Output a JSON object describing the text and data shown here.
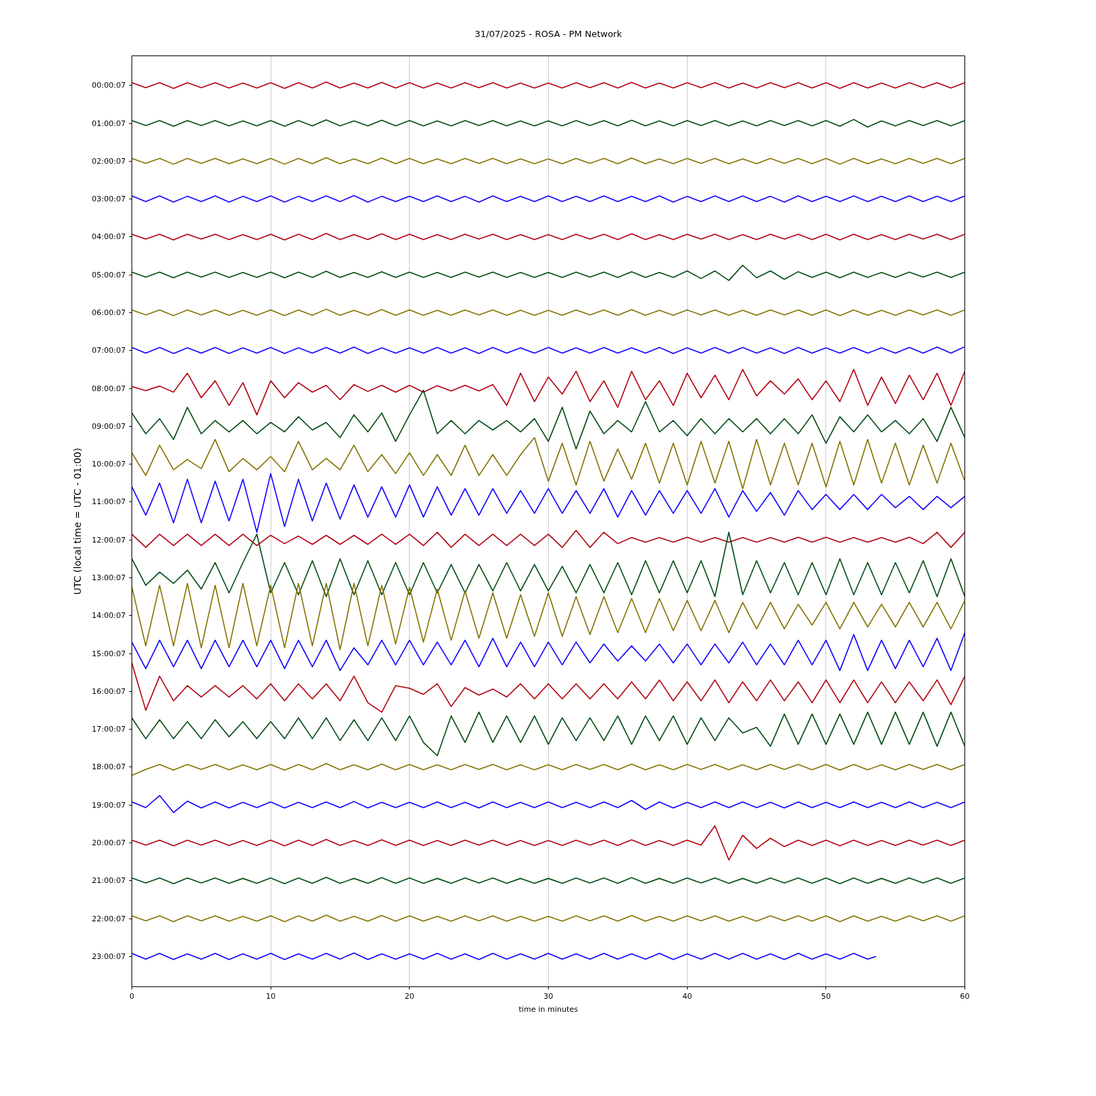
{
  "chart_data": {
    "type": "line",
    "title": "31/07/2025 - ROSA - PM Network",
    "xlabel": "time in minutes",
    "ylabel": "UTC (local time = UTC - 01:00)",
    "x": [
      0,
      1,
      2,
      3,
      4,
      5,
      6,
      7,
      8,
      9,
      10,
      11,
      12,
      13,
      14,
      15,
      16,
      17,
      18,
      19,
      20,
      21,
      22,
      23,
      24,
      25,
      26,
      27,
      28,
      29,
      30,
      31,
      32,
      33,
      34,
      35,
      36,
      37,
      38,
      39,
      40,
      41,
      42,
      43,
      44,
      45,
      46,
      47,
      48,
      49,
      50,
      51,
      52,
      53,
      54,
      55,
      56,
      57,
      58,
      59,
      60
    ],
    "xlim": [
      0,
      60
    ],
    "xticks": [
      0,
      10,
      20,
      30,
      40,
      50,
      60
    ],
    "ylim": [
      23.8,
      -0.78
    ],
    "yticks": [
      {
        "value": 0.00194,
        "label": "00:00:07"
      },
      {
        "value": 1.00194,
        "label": "01:00:07"
      },
      {
        "value": 2.00194,
        "label": "02:00:07"
      },
      {
        "value": 3.00194,
        "label": "03:00:07"
      },
      {
        "value": 4.00194,
        "label": "04:00:07"
      },
      {
        "value": 5.00194,
        "label": "05:00:07"
      },
      {
        "value": 6.00194,
        "label": "06:00:07"
      },
      {
        "value": 7.00194,
        "label": "07:00:07"
      },
      {
        "value": 8.00194,
        "label": "08:00:07"
      },
      {
        "value": 9.00194,
        "label": "09:00:07"
      },
      {
        "value": 10.00194,
        "label": "10:00:07"
      },
      {
        "value": 11.00194,
        "label": "11:00:07"
      },
      {
        "value": 12.00194,
        "label": "12:00:07"
      },
      {
        "value": 13.00194,
        "label": "13:00:07"
      },
      {
        "value": 14.00194,
        "label": "14:00:07"
      },
      {
        "value": 15.00194,
        "label": "15:00:07"
      },
      {
        "value": 16.00194,
        "label": "16:00:07"
      },
      {
        "value": 17.00194,
        "label": "17:00:07"
      },
      {
        "value": 18.00194,
        "label": "18:00:07"
      },
      {
        "value": 19.00194,
        "label": "19:00:07"
      },
      {
        "value": 20.00194,
        "label": "20:00:07"
      },
      {
        "value": 21.00194,
        "label": "21:00:07"
      },
      {
        "value": 22.00194,
        "label": "22:00:07"
      },
      {
        "value": 23.00194,
        "label": "23:00:07"
      }
    ],
    "grid": "x",
    "series": [
      {
        "color": "#b2000f",
        "values": [
          -0.07,
          0.06,
          -0.07,
          0.08,
          -0.07,
          0.06,
          -0.07,
          0.07,
          -0.06,
          0.07,
          -0.07,
          0.08,
          -0.07,
          0.07,
          -0.09,
          0.07,
          -0.06,
          0.07,
          -0.08,
          0.07,
          -0.07,
          0.07,
          -0.06,
          0.07,
          -0.07,
          0.06,
          -0.07,
          0.07,
          -0.06,
          0.07,
          -0.06,
          0.07,
          -0.07,
          0.06,
          -0.07,
          0.07,
          -0.08,
          0.07,
          -0.06,
          0.07,
          -0.07,
          0.06,
          -0.07,
          0.07,
          -0.06,
          0.07,
          -0.07,
          0.06,
          -0.07,
          0.07,
          -0.07,
          0.08,
          -0.07,
          0.07,
          -0.06,
          0.07,
          -0.07,
          0.06,
          -0.07,
          0.07,
          -0.07
        ]
      },
      {
        "color": "#004c12",
        "values": [
          0.93,
          1.06,
          0.93,
          1.08,
          0.93,
          1.06,
          0.93,
          1.07,
          0.94,
          1.07,
          0.93,
          1.08,
          0.93,
          1.07,
          0.91,
          1.07,
          0.94,
          1.07,
          0.92,
          1.07,
          0.93,
          1.07,
          0.94,
          1.07,
          0.93,
          1.06,
          0.93,
          1.07,
          0.94,
          1.07,
          0.94,
          1.07,
          0.93,
          1.06,
          0.93,
          1.07,
          0.92,
          1.07,
          0.94,
          1.07,
          0.93,
          1.06,
          0.93,
          1.07,
          0.94,
          1.07,
          0.93,
          1.06,
          0.93,
          1.07,
          0.93,
          1.08,
          0.9,
          1.1,
          0.94,
          1.07,
          0.93,
          1.06,
          0.93,
          1.07,
          0.93
        ]
      },
      {
        "color": "#847200",
        "values": [
          1.93,
          2.06,
          1.93,
          2.08,
          1.93,
          2.06,
          1.93,
          2.07,
          1.94,
          2.07,
          1.93,
          2.08,
          1.93,
          2.07,
          1.91,
          2.07,
          1.94,
          2.07,
          1.92,
          2.07,
          1.93,
          2.07,
          1.94,
          2.07,
          1.93,
          2.06,
          1.93,
          2.07,
          1.94,
          2.07,
          1.94,
          2.07,
          1.93,
          2.06,
          1.93,
          2.07,
          1.92,
          2.07,
          1.94,
          2.07,
          1.93,
          2.06,
          1.93,
          2.07,
          1.94,
          2.07,
          1.93,
          2.06,
          1.93,
          2.07,
          1.93,
          2.08,
          1.93,
          2.07,
          1.94,
          2.07,
          1.93,
          2.06,
          1.93,
          2.07,
          1.93
        ]
      },
      {
        "color": "#0e01ff",
        "values": [
          2.92,
          3.07,
          2.92,
          3.08,
          2.93,
          3.07,
          2.92,
          3.08,
          2.93,
          3.07,
          2.92,
          3.08,
          2.93,
          3.07,
          2.92,
          3.07,
          2.91,
          3.08,
          2.93,
          3.07,
          2.93,
          3.07,
          2.92,
          3.07,
          2.93,
          3.08,
          2.92,
          3.07,
          2.93,
          3.07,
          2.92,
          3.07,
          2.93,
          3.07,
          2.92,
          3.07,
          2.93,
          3.07,
          2.92,
          3.08,
          2.93,
          3.07,
          2.92,
          3.07,
          2.92,
          3.07,
          2.93,
          3.08,
          2.92,
          3.07,
          2.93,
          3.07,
          2.92,
          3.07,
          2.93,
          3.07,
          2.92,
          3.07,
          2.93,
          3.07,
          2.92
        ]
      },
      {
        "color": "#b2000f",
        "values": [
          3.93,
          4.06,
          3.93,
          4.08,
          3.93,
          4.06,
          3.93,
          4.07,
          3.94,
          4.07,
          3.93,
          4.08,
          3.93,
          4.07,
          3.91,
          4.07,
          3.94,
          4.07,
          3.92,
          4.07,
          3.93,
          4.07,
          3.94,
          4.07,
          3.93,
          4.06,
          3.93,
          4.07,
          3.94,
          4.07,
          3.94,
          4.07,
          3.93,
          4.06,
          3.93,
          4.07,
          3.92,
          4.07,
          3.94,
          4.07,
          3.93,
          4.06,
          3.93,
          4.07,
          3.94,
          4.07,
          3.93,
          4.06,
          3.93,
          4.07,
          3.93,
          4.08,
          3.93,
          4.07,
          3.94,
          4.07,
          3.93,
          4.06,
          3.93,
          4.07,
          3.93
        ]
      },
      {
        "color": "#004c12",
        "values": [
          4.93,
          5.06,
          4.93,
          5.08,
          4.93,
          5.06,
          4.93,
          5.07,
          4.94,
          5.07,
          4.93,
          5.08,
          4.93,
          5.07,
          4.91,
          5.07,
          4.94,
          5.07,
          4.92,
          5.07,
          4.93,
          5.07,
          4.94,
          5.07,
          4.93,
          5.06,
          4.93,
          5.07,
          4.94,
          5.07,
          4.94,
          5.07,
          4.93,
          5.06,
          4.93,
          5.07,
          4.92,
          5.07,
          4.94,
          5.07,
          4.9,
          5.1,
          4.9,
          5.15,
          4.75,
          5.08,
          4.9,
          5.12,
          4.92,
          5.07,
          4.93,
          5.08,
          4.93,
          5.07,
          4.94,
          5.07,
          4.93,
          5.06,
          4.93,
          5.07,
          4.93
        ]
      },
      {
        "color": "#847200",
        "values": [
          5.93,
          6.06,
          5.93,
          6.08,
          5.93,
          6.06,
          5.93,
          6.07,
          5.94,
          6.07,
          5.93,
          6.08,
          5.93,
          6.07,
          5.91,
          6.07,
          5.94,
          6.07,
          5.92,
          6.07,
          5.93,
          6.07,
          5.94,
          6.07,
          5.93,
          6.06,
          5.93,
          6.07,
          5.94,
          6.07,
          5.94,
          6.07,
          5.93,
          6.06,
          5.93,
          6.07,
          5.92,
          6.07,
          5.94,
          6.07,
          5.93,
          6.06,
          5.93,
          6.07,
          5.94,
          6.07,
          5.93,
          6.06,
          5.93,
          6.07,
          5.93,
          6.08,
          5.93,
          6.07,
          5.94,
          6.07,
          5.93,
          6.06,
          5.93,
          6.07,
          5.93
        ]
      },
      {
        "color": "#0e01ff",
        "values": [
          6.92,
          7.07,
          6.92,
          7.08,
          6.93,
          7.07,
          6.92,
          7.08,
          6.93,
          7.07,
          6.92,
          7.08,
          6.93,
          7.07,
          6.92,
          7.07,
          6.91,
          7.08,
          6.93,
          7.07,
          6.93,
          7.07,
          6.92,
          7.07,
          6.93,
          7.08,
          6.92,
          7.07,
          6.93,
          7.07,
          6.92,
          7.07,
          6.93,
          7.07,
          6.92,
          7.07,
          6.93,
          7.07,
          6.92,
          7.08,
          6.93,
          7.07,
          6.92,
          7.07,
          6.92,
          7.07,
          6.93,
          7.08,
          6.92,
          7.07,
          6.93,
          7.07,
          6.92,
          7.07,
          6.93,
          7.07,
          6.92,
          7.07,
          6.91,
          7.07,
          6.9
        ]
      },
      {
        "color": "#b2000f",
        "values": [
          7.95,
          8.06,
          7.94,
          8.1,
          7.6,
          8.25,
          7.8,
          8.45,
          7.85,
          8.7,
          7.8,
          8.25,
          7.85,
          8.1,
          7.92,
          8.3,
          7.9,
          8.08,
          7.92,
          8.1,
          7.92,
          8.1,
          7.93,
          8.07,
          7.92,
          8.07,
          7.9,
          8.45,
          7.6,
          8.35,
          7.7,
          8.15,
          7.55,
          8.35,
          7.8,
          8.5,
          7.55,
          8.3,
          7.8,
          8.45,
          7.6,
          8.25,
          7.65,
          8.3,
          7.5,
          8.2,
          7.8,
          8.15,
          7.75,
          8.3,
          7.8,
          8.35,
          7.5,
          8.45,
          7.7,
          8.4,
          7.65,
          8.3,
          7.6,
          8.45,
          7.55
        ]
      },
      {
        "color": "#004c12",
        "values": [
          8.65,
          9.2,
          8.8,
          9.35,
          8.5,
          9.2,
          8.85,
          9.15,
          8.85,
          9.2,
          8.9,
          9.15,
          8.75,
          9.1,
          8.9,
          9.3,
          8.7,
          9.15,
          8.65,
          9.4,
          8.7,
          8.05,
          9.2,
          8.85,
          9.2,
          8.85,
          9.1,
          8.85,
          9.15,
          8.8,
          9.4,
          8.5,
          9.6,
          8.6,
          9.2,
          8.85,
          9.15,
          8.35,
          9.15,
          8.85,
          9.25,
          8.8,
          9.2,
          8.8,
          9.15,
          8.8,
          9.2,
          8.8,
          9.2,
          8.7,
          9.45,
          8.75,
          9.15,
          8.7,
          9.15,
          8.85,
          9.2,
          8.8,
          9.4,
          8.5,
          9.3
        ]
      },
      {
        "color": "#847200",
        "values": [
          9.7,
          10.3,
          9.5,
          10.15,
          9.88,
          10.12,
          9.35,
          10.2,
          9.85,
          10.15,
          9.8,
          10.2,
          9.4,
          10.15,
          9.85,
          10.15,
          9.5,
          10.2,
          9.75,
          10.25,
          9.7,
          10.3,
          9.75,
          10.3,
          9.5,
          10.3,
          9.75,
          10.3,
          9.75,
          9.3,
          10.45,
          9.45,
          10.55,
          9.4,
          10.45,
          9.6,
          10.4,
          9.45,
          10.5,
          9.45,
          10.55,
          9.4,
          10.5,
          9.4,
          10.65,
          9.35,
          10.55,
          9.45,
          10.55,
          9.45,
          10.6,
          9.4,
          10.55,
          9.35,
          10.5,
          9.45,
          10.55,
          9.5,
          10.5,
          9.45,
          10.45
        ]
      },
      {
        "color": "#0e01ff",
        "values": [
          10.6,
          11.35,
          10.5,
          11.55,
          10.4,
          11.55,
          10.45,
          11.5,
          10.4,
          11.8,
          10.25,
          11.65,
          10.4,
          11.5,
          10.5,
          11.45,
          10.55,
          11.4,
          10.6,
          11.4,
          10.55,
          11.4,
          10.6,
          11.35,
          10.65,
          11.35,
          10.65,
          11.3,
          10.7,
          11.3,
          10.65,
          11.3,
          10.7,
          11.3,
          10.65,
          11.4,
          10.7,
          11.35,
          10.7,
          11.3,
          10.7,
          11.3,
          10.65,
          11.4,
          10.7,
          11.25,
          10.75,
          11.35,
          10.7,
          11.2,
          10.8,
          11.2,
          10.8,
          11.2,
          10.8,
          11.15,
          10.85,
          11.2,
          10.85,
          11.15,
          10.85
        ]
      },
      {
        "color": "#b2000f",
        "values": [
          11.85,
          12.2,
          11.85,
          12.15,
          11.85,
          12.15,
          11.85,
          12.15,
          11.85,
          12.15,
          11.88,
          12.1,
          11.9,
          12.12,
          11.88,
          12.12,
          11.88,
          12.12,
          11.85,
          12.12,
          11.85,
          12.15,
          11.8,
          12.2,
          11.85,
          12.15,
          11.85,
          12.15,
          11.85,
          12.15,
          11.85,
          12.2,
          11.75,
          12.2,
          11.8,
          12.1,
          11.94,
          12.06,
          11.94,
          12.06,
          11.93,
          12.06,
          11.94,
          12.06,
          11.94,
          12.06,
          11.94,
          12.06,
          11.93,
          12.06,
          11.93,
          12.06,
          11.94,
          12.06,
          11.94,
          12.06,
          11.93,
          12.1,
          11.8,
          12.2,
          11.8
        ]
      },
      {
        "color": "#004c12",
        "values": [
          12.5,
          13.2,
          12.85,
          13.15,
          12.8,
          13.3,
          12.6,
          13.4,
          12.6,
          11.85,
          13.4,
          12.6,
          13.45,
          12.55,
          13.5,
          12.5,
          13.45,
          12.55,
          13.45,
          12.6,
          13.45,
          12.6,
          13.4,
          12.65,
          13.4,
          12.65,
          13.35,
          12.6,
          13.35,
          12.65,
          13.35,
          12.7,
          13.4,
          12.65,
          13.4,
          12.6,
          13.45,
          12.55,
          13.4,
          12.55,
          13.4,
          12.55,
          13.5,
          11.8,
          13.45,
          12.55,
          13.4,
          12.6,
          13.45,
          12.6,
          13.45,
          12.5,
          13.45,
          12.6,
          13.45,
          12.6,
          13.4,
          12.55,
          13.5,
          12.5,
          13.5
        ]
      },
      {
        "color": "#847200",
        "values": [
          13.25,
          14.8,
          13.2,
          14.8,
          13.15,
          14.85,
          13.2,
          14.85,
          13.15,
          14.8,
          13.2,
          14.85,
          13.15,
          14.8,
          13.15,
          14.9,
          13.15,
          14.8,
          13.2,
          14.75,
          13.25,
          14.7,
          13.3,
          14.65,
          13.35,
          14.6,
          13.4,
          14.6,
          13.45,
          14.55,
          13.4,
          14.55,
          13.5,
          14.5,
          13.5,
          14.45,
          13.55,
          14.45,
          13.55,
          14.4,
          13.6,
          14.4,
          13.6,
          14.45,
          13.65,
          14.35,
          13.65,
          14.35,
          13.7,
          14.25,
          13.65,
          14.35,
          13.65,
          14.3,
          13.7,
          14.3,
          13.65,
          14.3,
          13.65,
          14.35,
          13.6
        ]
      },
      {
        "color": "#0e01ff",
        "values": [
          14.7,
          15.4,
          14.65,
          15.35,
          14.65,
          15.4,
          14.65,
          15.35,
          14.65,
          15.35,
          14.65,
          15.4,
          14.65,
          15.35,
          14.65,
          15.45,
          14.85,
          15.3,
          14.65,
          15.3,
          14.65,
          15.3,
          14.7,
          15.3,
          14.65,
          15.35,
          14.6,
          15.35,
          14.7,
          15.35,
          14.7,
          15.3,
          14.7,
          15.25,
          14.75,
          15.2,
          14.8,
          15.2,
          14.75,
          15.25,
          14.75,
          15.3,
          14.75,
          15.25,
          14.7,
          15.3,
          14.75,
          15.3,
          14.65,
          15.3,
          14.65,
          15.45,
          14.5,
          15.45,
          14.65,
          15.4,
          14.65,
          15.35,
          14.6,
          15.45,
          14.45
        ]
      },
      {
        "color": "#b2000f",
        "values": [
          15.25,
          16.5,
          15.6,
          16.25,
          15.85,
          16.15,
          15.85,
          16.15,
          15.85,
          16.2,
          15.8,
          16.25,
          15.8,
          16.2,
          15.8,
          16.25,
          15.6,
          16.3,
          16.55,
          15.85,
          15.92,
          16.08,
          15.8,
          16.4,
          15.9,
          16.1,
          15.94,
          16.15,
          15.8,
          16.2,
          15.8,
          16.2,
          15.8,
          16.2,
          15.8,
          16.2,
          15.75,
          16.2,
          15.7,
          16.25,
          15.75,
          16.25,
          15.7,
          16.3,
          15.75,
          16.25,
          15.7,
          16.25,
          15.75,
          16.3,
          15.7,
          16.3,
          15.7,
          16.3,
          15.75,
          16.3,
          15.75,
          16.25,
          15.7,
          16.35,
          15.6
        ]
      },
      {
        "color": "#004c12",
        "values": [
          16.7,
          17.25,
          16.75,
          17.25,
          16.8,
          17.25,
          16.75,
          17.2,
          16.8,
          17.25,
          16.8,
          17.25,
          16.7,
          17.25,
          16.7,
          17.3,
          16.75,
          17.3,
          16.7,
          17.3,
          16.65,
          17.35,
          17.7,
          16.65,
          17.35,
          16.55,
          17.35,
          16.65,
          17.35,
          16.65,
          17.4,
          16.7,
          17.3,
          16.7,
          17.3,
          16.65,
          17.4,
          16.65,
          17.3,
          16.65,
          17.4,
          16.7,
          17.3,
          16.7,
          17.1,
          16.95,
          17.45,
          16.6,
          17.4,
          16.6,
          17.4,
          16.6,
          17.4,
          16.55,
          17.4,
          16.55,
          17.4,
          16.55,
          17.45,
          16.55,
          17.45
        ]
      },
      {
        "color": "#847200",
        "values": [
          18.22,
          18.06,
          17.93,
          18.08,
          17.93,
          18.06,
          17.93,
          18.07,
          17.94,
          18.07,
          17.93,
          18.08,
          17.93,
          18.07,
          17.91,
          18.07,
          17.94,
          18.07,
          17.92,
          18.07,
          17.93,
          18.07,
          17.94,
          18.07,
          17.93,
          18.06,
          17.93,
          18.07,
          17.94,
          18.07,
          17.94,
          18.07,
          17.93,
          18.06,
          17.93,
          18.07,
          17.92,
          18.07,
          17.94,
          18.07,
          17.93,
          18.06,
          17.93,
          18.07,
          17.94,
          18.07,
          17.93,
          18.06,
          17.93,
          18.07,
          17.93,
          18.08,
          17.93,
          18.07,
          17.94,
          18.07,
          17.93,
          18.06,
          17.93,
          18.07,
          17.93
        ]
      },
      {
        "color": "#0e01ff",
        "values": [
          18.92,
          19.07,
          18.75,
          19.2,
          18.9,
          19.08,
          18.92,
          19.08,
          18.93,
          19.07,
          18.92,
          19.08,
          18.93,
          19.07,
          18.92,
          19.07,
          18.91,
          19.08,
          18.93,
          19.07,
          18.93,
          19.07,
          18.92,
          19.07,
          18.93,
          19.08,
          18.92,
          19.07,
          18.93,
          19.07,
          18.92,
          19.07,
          18.93,
          19.07,
          18.92,
          19.07,
          18.88,
          19.12,
          18.92,
          19.08,
          18.93,
          19.07,
          18.92,
          19.07,
          18.92,
          19.07,
          18.93,
          19.08,
          18.92,
          19.07,
          18.93,
          19.07,
          18.92,
          19.07,
          18.93,
          19.07,
          18.92,
          19.07,
          18.93,
          19.07,
          18.92
        ]
      },
      {
        "color": "#b2000f",
        "values": [
          19.93,
          20.06,
          19.93,
          20.08,
          19.93,
          20.06,
          19.93,
          20.07,
          19.94,
          20.07,
          19.93,
          20.08,
          19.93,
          20.07,
          19.91,
          20.07,
          19.94,
          20.07,
          19.92,
          20.07,
          19.93,
          20.07,
          19.94,
          20.07,
          19.93,
          20.06,
          19.93,
          20.07,
          19.94,
          20.07,
          19.94,
          20.07,
          19.93,
          20.06,
          19.93,
          20.07,
          19.92,
          20.07,
          19.94,
          20.07,
          19.93,
          20.06,
          19.55,
          20.45,
          19.8,
          20.15,
          19.88,
          20.1,
          19.93,
          20.07,
          19.93,
          20.08,
          19.93,
          20.07,
          19.94,
          20.07,
          19.93,
          20.06,
          19.93,
          20.07,
          19.93
        ]
      },
      {
        "color": "#004c12",
        "values": [
          20.93,
          21.06,
          20.93,
          21.08,
          20.93,
          21.06,
          20.93,
          21.07,
          20.94,
          21.07,
          20.93,
          21.08,
          20.93,
          21.07,
          20.91,
          21.07,
          20.94,
          21.07,
          20.92,
          21.07,
          20.93,
          21.07,
          20.94,
          21.07,
          20.93,
          21.06,
          20.93,
          21.07,
          20.94,
          21.07,
          20.94,
          21.07,
          20.93,
          21.06,
          20.93,
          21.07,
          20.92,
          21.07,
          20.94,
          21.07,
          20.93,
          21.06,
          20.93,
          21.07,
          20.94,
          21.07,
          20.93,
          21.06,
          20.93,
          21.07,
          20.93,
          21.08,
          20.93,
          21.07,
          20.94,
          21.07,
          20.93,
          21.06,
          20.93,
          21.07,
          20.93
        ]
      },
      {
        "color": "#847200",
        "values": [
          21.93,
          22.06,
          21.93,
          22.08,
          21.93,
          22.06,
          21.93,
          22.07,
          21.94,
          22.07,
          21.93,
          22.08,
          21.93,
          22.07,
          21.91,
          22.07,
          21.94,
          22.07,
          21.92,
          22.07,
          21.93,
          22.07,
          21.94,
          22.07,
          21.93,
          22.06,
          21.93,
          22.07,
          21.94,
          22.07,
          21.94,
          22.07,
          21.93,
          22.06,
          21.93,
          22.07,
          21.92,
          22.07,
          21.94,
          22.07,
          21.93,
          22.06,
          21.93,
          22.07,
          21.94,
          22.07,
          21.93,
          22.06,
          21.93,
          22.07,
          21.93,
          22.08,
          21.93,
          22.07,
          21.94,
          22.07,
          21.93,
          22.06,
          21.93,
          22.07,
          21.93
        ]
      },
      {
        "color": "#0e01ff",
        "x": [
          0,
          1,
          2,
          3,
          4,
          5,
          6,
          7,
          8,
          9,
          10,
          11,
          12,
          13,
          14,
          15,
          16,
          17,
          18,
          19,
          20,
          21,
          22,
          23,
          24,
          25,
          26,
          27,
          28,
          29,
          30,
          31,
          32,
          33,
          34,
          35,
          36,
          37,
          38,
          39,
          40,
          41,
          42,
          43,
          44,
          45,
          46,
          47,
          48,
          49,
          50,
          51,
          52,
          53,
          53.6
        ],
        "values": [
          22.92,
          23.07,
          22.92,
          23.08,
          22.93,
          23.07,
          22.92,
          23.08,
          22.93,
          23.07,
          22.92,
          23.08,
          22.93,
          23.07,
          22.92,
          23.07,
          22.91,
          23.08,
          22.93,
          23.07,
          22.93,
          23.07,
          22.92,
          23.07,
          22.93,
          23.08,
          22.92,
          23.07,
          22.93,
          23.07,
          22.92,
          23.07,
          22.93,
          23.07,
          22.92,
          23.07,
          22.93,
          23.07,
          22.92,
          23.08,
          22.93,
          23.07,
          22.92,
          23.07,
          22.92,
          23.07,
          22.93,
          23.08,
          22.92,
          23.07,
          22.93,
          23.07,
          22.92,
          23.07,
          23.0
        ]
      }
    ]
  }
}
